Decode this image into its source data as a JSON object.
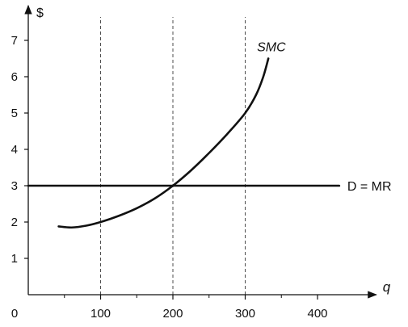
{
  "chart_data": {
    "type": "line",
    "title": "",
    "xlabel": "q",
    "ylabel": "$",
    "origin_label": "0",
    "xlim": [
      0,
      450
    ],
    "ylim": [
      0,
      7.6
    ],
    "x_ticks": [
      100,
      200,
      300,
      400
    ],
    "y_ticks": [
      1,
      2,
      3,
      4,
      5,
      6,
      7
    ],
    "minor_x_ticks": [
      50,
      150,
      250,
      350
    ],
    "grid": {
      "vertical_dashed_at_x": [
        100,
        200,
        300
      ]
    },
    "series": [
      {
        "name": "SMC",
        "style": "curve",
        "points": [
          {
            "x": 42,
            "y": 1.88
          },
          {
            "x": 60,
            "y": 1.85
          },
          {
            "x": 80,
            "y": 1.9
          },
          {
            "x": 100,
            "y": 2.0
          },
          {
            "x": 125,
            "y": 2.17
          },
          {
            "x": 150,
            "y": 2.38
          },
          {
            "x": 175,
            "y": 2.65
          },
          {
            "x": 200,
            "y": 3.0
          },
          {
            "x": 225,
            "y": 3.42
          },
          {
            "x": 250,
            "y": 3.9
          },
          {
            "x": 275,
            "y": 4.42
          },
          {
            "x": 300,
            "y": 5.0
          },
          {
            "x": 315,
            "y": 5.5
          },
          {
            "x": 325,
            "y": 6.0
          },
          {
            "x": 332,
            "y": 6.5
          }
        ]
      },
      {
        "name": "D = MR",
        "style": "horizontal",
        "points": [
          {
            "x": 0,
            "y": 3
          },
          {
            "x": 430,
            "y": 3
          }
        ]
      }
    ]
  }
}
